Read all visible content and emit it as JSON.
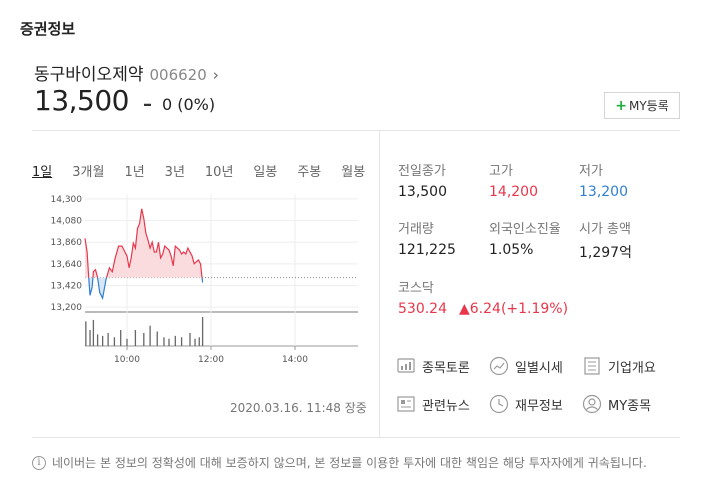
{
  "section_title": "증권정보",
  "stock": {
    "name": "동구바이오제약",
    "code": "006620",
    "chevron": "›",
    "price": "13,500",
    "change_symbol": "–",
    "change": "0 (0%)"
  },
  "my_button": {
    "plus": "+",
    "label": "MY등록"
  },
  "tabs": [
    "1일",
    "3개월",
    "1년",
    "3년",
    "10년",
    "일봉",
    "주봉",
    "월봉"
  ],
  "stats": {
    "prev_close": {
      "label": "전일종가",
      "value": "13,500"
    },
    "high": {
      "label": "고가",
      "value": "14,200"
    },
    "low": {
      "label": "저가",
      "value": "13,200"
    },
    "volume": {
      "label": "거래량",
      "value": "121,225"
    },
    "foreign_ratio": {
      "label": "외국인소진율",
      "value": "1.05%"
    },
    "market_cap": {
      "label": "시가 총액",
      "value": "1,297억"
    },
    "index": {
      "label": "코스닥",
      "value": "530.24",
      "change": "▲6.24(+1.19%)"
    }
  },
  "links": {
    "discussion": {
      "label": "종목토론",
      "icon": "chart-bubble-icon"
    },
    "daily": {
      "label": "일별시세",
      "icon": "trend-icon"
    },
    "company": {
      "label": "기업개요",
      "icon": "document-icon"
    },
    "news": {
      "label": "관련뉴스",
      "icon": "news-icon"
    },
    "financial": {
      "label": "재무정보",
      "icon": "clock-icon"
    },
    "mystock": {
      "label": "MY종목",
      "icon": "user-icon"
    }
  },
  "timestamp": "2020.03.16. 11:48 장중",
  "disclaimer": {
    "icon": "i",
    "text": "네이버는 본 정보의 정확성에 대해 보증하지 않으며, 본 정보를 이용한 투자에 대한 책임은 해당 투자자에게 귀속됩니다."
  },
  "colors": {
    "up": "#e8374b",
    "down": "#2f7fd1",
    "accent": "#1dae3c"
  },
  "chart_data": {
    "type": "line",
    "title": "",
    "xlabel": "",
    "ylabel": "",
    "y_ticks": [
      "14,300",
      "14,080",
      "13,860",
      "13,640",
      "13,420",
      "13,200"
    ],
    "y_tick_values": [
      14300,
      14080,
      13860,
      13640,
      13420,
      13200
    ],
    "x_ticks": [
      "10:00",
      "12:00",
      "14:00"
    ],
    "x_tick_values": [
      10,
      12,
      14
    ],
    "xlim": [
      9,
      15.5
    ],
    "ylim": [
      13150,
      14350
    ],
    "baseline": 13500,
    "price": {
      "x": [
        9.0,
        9.05,
        9.08,
        9.12,
        9.17,
        9.2,
        9.25,
        9.3,
        9.35,
        9.42,
        9.5,
        9.58,
        9.65,
        9.72,
        9.8,
        9.88,
        9.95,
        10.0,
        10.05,
        10.1,
        10.15,
        10.2,
        10.25,
        10.3,
        10.35,
        10.4,
        10.45,
        10.5,
        10.55,
        10.6,
        10.65,
        10.7,
        10.75,
        10.8,
        10.85,
        10.9,
        10.95,
        11.0,
        11.05,
        11.1,
        11.15,
        11.2,
        11.25,
        11.3,
        11.35,
        11.4,
        11.45,
        11.5,
        11.55,
        11.6,
        11.65,
        11.7,
        11.75,
        11.8
      ],
      "y": [
        13900,
        13760,
        13550,
        13320,
        13400,
        13560,
        13580,
        13500,
        13350,
        13290,
        13480,
        13600,
        13560,
        13700,
        13820,
        13820,
        13760,
        13720,
        13600,
        13700,
        13850,
        13800,
        14000,
        14050,
        14200,
        14100,
        13950,
        13880,
        13800,
        13860,
        13760,
        13760,
        13860,
        13700,
        13740,
        13820,
        13800,
        13780,
        13720,
        13620,
        13820,
        13800,
        13780,
        13740,
        13760,
        13740,
        13800,
        13760,
        13720,
        13640,
        13660,
        13680,
        13640,
        13450
      ]
    },
    "volume": {
      "x": [
        9.02,
        9.12,
        9.2,
        9.3,
        9.42,
        9.55,
        9.7,
        9.85,
        10.0,
        10.2,
        10.4,
        10.55,
        10.72,
        10.88,
        11.0,
        11.15,
        11.3,
        11.5,
        11.62,
        11.72,
        11.8
      ],
      "v": [
        85,
        55,
        90,
        40,
        35,
        45,
        30,
        55,
        25,
        55,
        45,
        70,
        50,
        30,
        25,
        35,
        30,
        45,
        25,
        30,
        100
      ]
    }
  }
}
